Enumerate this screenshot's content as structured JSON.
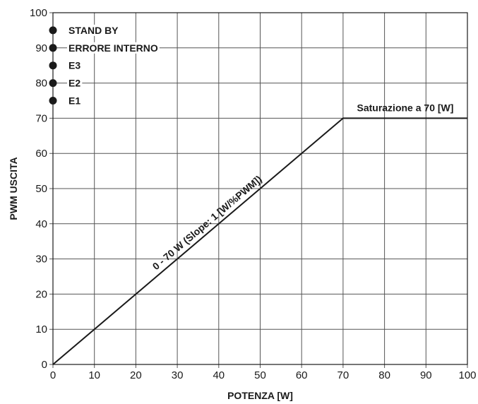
{
  "chart_data": {
    "type": "line",
    "title": "",
    "xlabel": "POTENZA [W]",
    "ylabel": "PWM USCITA",
    "xlim": [
      0,
      100
    ],
    "ylim": [
      0,
      100
    ],
    "x_ticks": [
      0,
      10,
      20,
      30,
      40,
      50,
      60,
      70,
      80,
      90,
      100
    ],
    "y_ticks": [
      0,
      10,
      20,
      30,
      40,
      50,
      60,
      70,
      80,
      90,
      100
    ],
    "grid": true,
    "series": [
      {
        "x": [
          0,
          70,
          100
        ],
        "y": [
          0,
          70,
          70
        ]
      }
    ],
    "annotations": [
      {
        "text": "0 - 70 W (Slope: 1 [W/%PWM])"
      },
      {
        "text": "Saturazione a 70 [W]"
      }
    ],
    "status_points": [
      {
        "label": "STAND BY",
        "y": 95
      },
      {
        "label": "ERRORE INTERNO",
        "y": 90
      },
      {
        "label": "E3",
        "y": 85
      },
      {
        "label": "E2",
        "y": 80
      },
      {
        "label": "E1",
        "y": 75
      }
    ],
    "colors": {
      "line": "#1a1a1a",
      "grid": "#555555",
      "marker": "#1a1a1a"
    }
  }
}
